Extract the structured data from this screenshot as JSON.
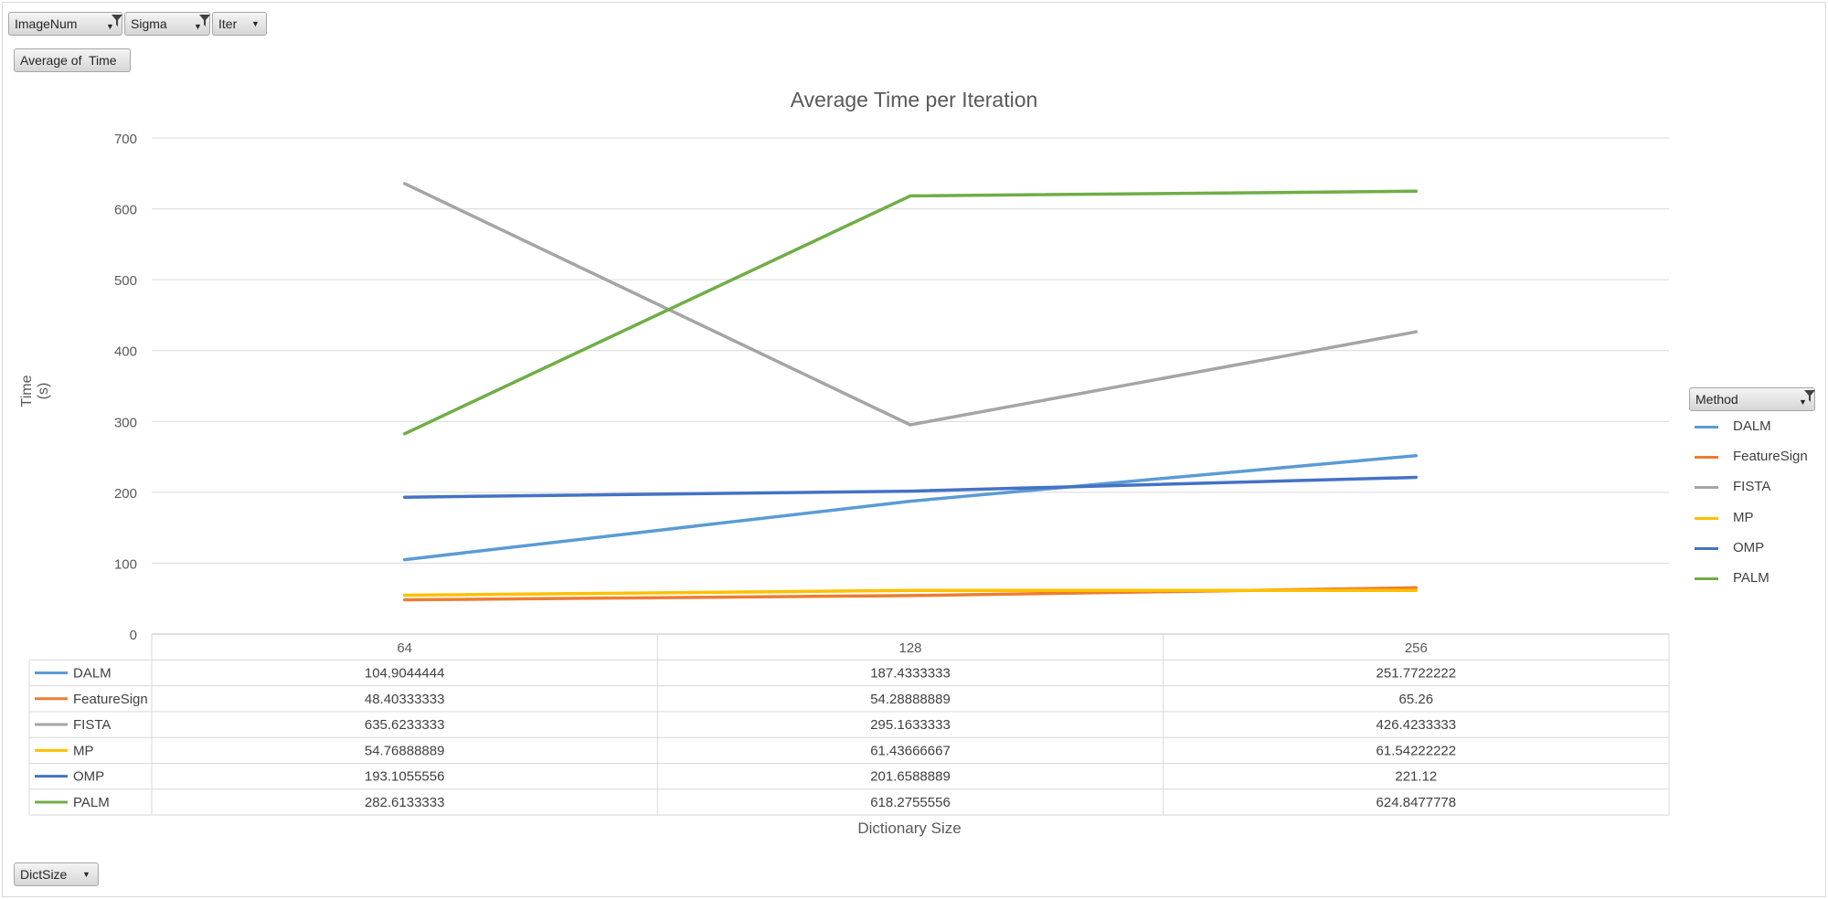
{
  "filters": {
    "image_num": "ImageNum",
    "sigma": "Sigma",
    "iter": "Iter",
    "values_field": "Average of  Time",
    "axis_field": "DictSize",
    "legend_field": "Method"
  },
  "chart_data": {
    "type": "line",
    "title": "Average Time per Iteration",
    "xlabel": "Dictionary Size",
    "ylabel": "Time (s)",
    "ylim": [
      0,
      700
    ],
    "yticks": [
      "0",
      "100",
      "200",
      "300",
      "400",
      "500",
      "600",
      "700"
    ],
    "categories": [
      "64",
      "128",
      "256"
    ],
    "grid": true,
    "legend_position": "right",
    "series": [
      {
        "name": "DALM",
        "color": "#5b9bd5",
        "values": [
          104.9044444,
          187.4333333,
          251.7722222
        ],
        "labels": [
          "104.9044444",
          "187.4333333",
          "251.7722222"
        ]
      },
      {
        "name": "FeatureSign",
        "color": "#ed7d31",
        "values": [
          48.40333333,
          54.28888889,
          65.26
        ],
        "labels": [
          "48.40333333",
          "54.28888889",
          "65.26"
        ]
      },
      {
        "name": "FISTA",
        "color": "#a5a5a5",
        "values": [
          635.6233333,
          295.1633333,
          426.4233333
        ],
        "labels": [
          "635.6233333",
          "295.1633333",
          "426.4233333"
        ]
      },
      {
        "name": "MP",
        "color": "#ffc000",
        "values": [
          54.76888889,
          61.43666667,
          61.54222222
        ],
        "labels": [
          "54.76888889",
          "61.43666667",
          "61.54222222"
        ]
      },
      {
        "name": "OMP",
        "color": "#4472c4",
        "values": [
          193.1055556,
          201.6588889,
          221.12
        ],
        "labels": [
          "193.1055556",
          "201.6588889",
          "221.12"
        ]
      },
      {
        "name": "PALM",
        "color": "#70ad47",
        "values": [
          282.6133333,
          618.2755556,
          624.8477778
        ],
        "labels": [
          "282.6133333",
          "618.2755556",
          "624.8477778"
        ]
      }
    ]
  }
}
